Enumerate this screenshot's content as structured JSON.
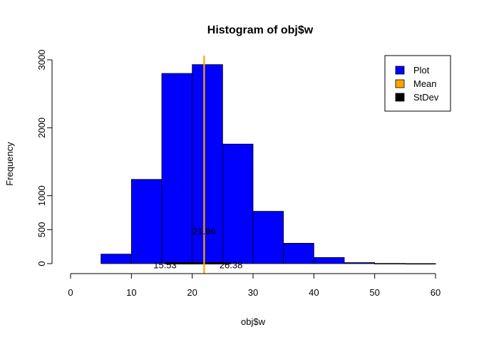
{
  "chart_data": {
    "type": "bar",
    "title": "Histogram of obj$w",
    "xlabel": "obj$w",
    "ylabel": "Frequency",
    "xlim": [
      0,
      60
    ],
    "ylim": [
      0,
      3000
    ],
    "x_ticks": [
      0,
      10,
      20,
      30,
      40,
      50,
      60
    ],
    "y_ticks": [
      0,
      500,
      1000,
      2000,
      3000
    ],
    "bins": [
      {
        "from": 5,
        "to": 10,
        "value": 140
      },
      {
        "from": 10,
        "to": 15,
        "value": 1240
      },
      {
        "from": 15,
        "to": 20,
        "value": 2800
      },
      {
        "from": 20,
        "to": 25,
        "value": 2930
      },
      {
        "from": 25,
        "to": 30,
        "value": 1760
      },
      {
        "from": 30,
        "to": 35,
        "value": 770
      },
      {
        "from": 35,
        "to": 40,
        "value": 300
      },
      {
        "from": 40,
        "to": 45,
        "value": 90
      },
      {
        "from": 45,
        "to": 50,
        "value": 15
      },
      {
        "from": 50,
        "to": 55,
        "value": 3
      },
      {
        "from": 55,
        "to": 60,
        "value": 1
      }
    ],
    "bar_color": "#0000ff",
    "mean": {
      "value": 21.96,
      "label": "21.96",
      "color": "#ffa500"
    },
    "stdev": {
      "low": 15.53,
      "high": 26.38,
      "low_label": "15.53",
      "high_label": "26.38",
      "color": "#000000"
    },
    "legend": {
      "position": "top-right",
      "entries": [
        {
          "label": "Plot",
          "color": "#0000ff"
        },
        {
          "label": "Mean",
          "color": "#ffa500"
        },
        {
          "label": "StDev",
          "color": "#000000"
        }
      ]
    },
    "grid": false
  }
}
